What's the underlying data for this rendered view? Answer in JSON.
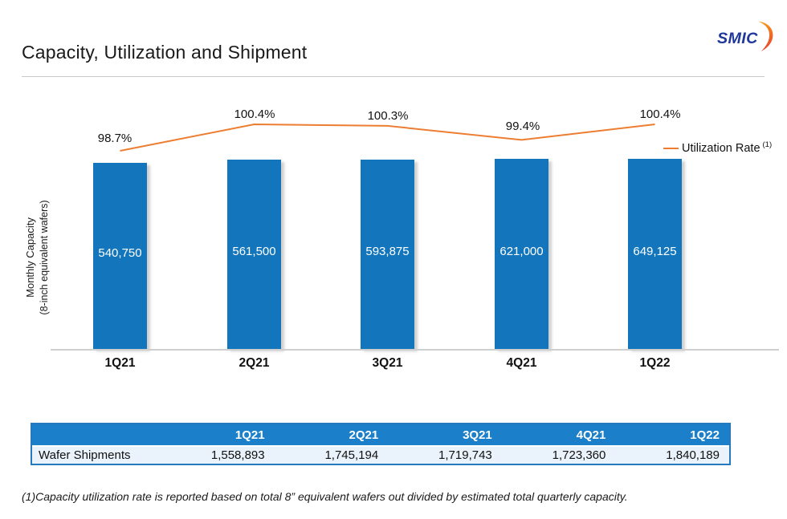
{
  "header": {
    "title": "Capacity, Utilization and Shipment",
    "logo_text": "SMIC"
  },
  "chart_data": {
    "type": "bar",
    "subtype": "bar-with-line-overlay",
    "categories": [
      "1Q21",
      "2Q21",
      "3Q21",
      "4Q21",
      "1Q22"
    ],
    "series": [
      {
        "name": "Monthly Capacity",
        "type": "bar",
        "values": [
          540750,
          561500,
          593875,
          621000,
          649125
        ],
        "labels": [
          "540,750",
          "561,500",
          "593,875",
          "621,000",
          "649,125"
        ],
        "color": "#1376BD"
      },
      {
        "name": "Utilization Rate",
        "type": "line",
        "values": [
          98.7,
          100.4,
          100.3,
          99.4,
          100.4
        ],
        "labels": [
          "98.7%",
          "100.4%",
          "100.3%",
          "99.4%",
          "100.4%"
        ],
        "color": "#ED7D31"
      }
    ],
    "ylabel_line1": "Monthly Capacity",
    "ylabel_line2": "(8-inch equivalent wafers)",
    "legend": {
      "label": "Utilization Rate",
      "superscript": "(1)",
      "position": "right"
    },
    "grid": false,
    "y_axis_ticks_visible": false
  },
  "table": {
    "row_header": "Wafer Shipments",
    "columns": [
      "1Q21",
      "2Q21",
      "3Q21",
      "4Q21",
      "1Q22"
    ],
    "values": [
      "1,558,893",
      "1,745,194",
      "1,719,743",
      "1,723,360",
      "1,840,189"
    ]
  },
  "footnote": "(1)Capacity utilization rate is reported based on total 8” equivalent wafers out divided by estimated total quarterly capacity.",
  "colors": {
    "bar_blue": "#1376BD",
    "line_orange": "#ED7D31",
    "table_header_blue": "#1B80C9",
    "table_row_bg": "#EAF3FB",
    "table_border_blue": "#2579BE",
    "logo_blue": "#20389B",
    "logo_orange_top": "#F9A01B",
    "logo_orange_bottom": "#E8432B",
    "axis_gray": "#CFCFCF"
  }
}
